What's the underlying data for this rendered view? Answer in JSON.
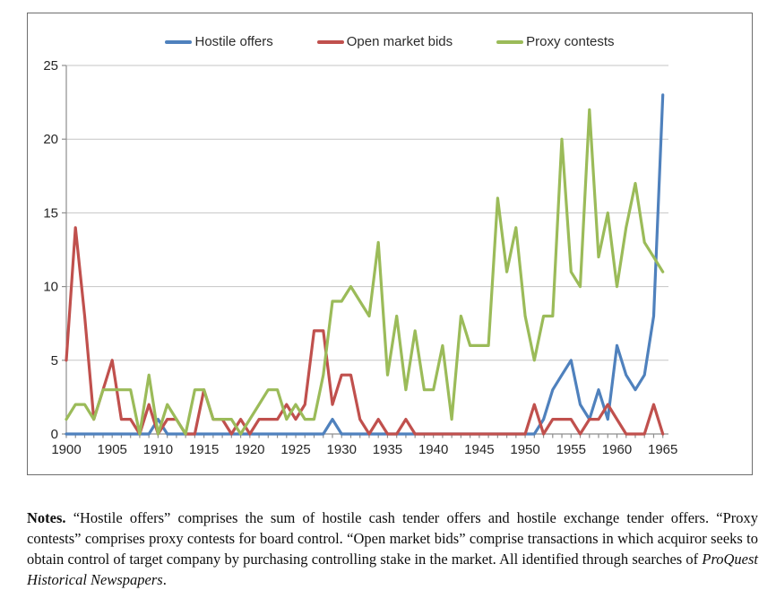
{
  "figure": {
    "border_color": "#6e6e6e",
    "background": "#ffffff"
  },
  "legend": [
    {
      "label": "Hostile offers",
      "color": "#4F81BD"
    },
    {
      "label": "Open market bids",
      "color": "#C0504D"
    },
    {
      "label": "Proxy contests",
      "color": "#9BBB59"
    }
  ],
  "chart_data": {
    "type": "line",
    "title": "",
    "xlabel": "",
    "ylabel": "",
    "x_start": 1900,
    "x_end": 1965,
    "x_step": 1,
    "ylim": [
      0,
      25
    ],
    "y_ticks": [
      0,
      5,
      10,
      15,
      20,
      25
    ],
    "x_tick_labels": [
      1900,
      1905,
      1910,
      1915,
      1920,
      1925,
      1930,
      1935,
      1940,
      1945,
      1950,
      1955,
      1960,
      1965
    ],
    "grid": true,
    "legend_position": "top",
    "gridline_color": "#c6c6c6",
    "axis_color": "#8e8e8e",
    "label_color": "#262626",
    "series": [
      {
        "name": "Hostile offers",
        "color": "#4F81BD",
        "values": [
          0,
          0,
          0,
          0,
          0,
          0,
          0,
          0,
          0,
          0,
          1,
          0,
          0,
          0,
          0,
          0,
          0,
          0,
          0,
          0,
          0,
          0,
          0,
          0,
          0,
          0,
          0,
          0,
          0,
          1,
          0,
          0,
          0,
          0,
          0,
          0,
          0,
          0,
          0,
          0,
          0,
          0,
          0,
          0,
          0,
          0,
          0,
          0,
          0,
          0,
          0,
          0,
          1,
          3,
          4,
          5,
          2,
          1,
          3,
          1,
          6,
          4,
          3,
          4,
          8,
          23
        ]
      },
      {
        "name": "Open market bids",
        "color": "#C0504D",
        "values": [
          5,
          14,
          8,
          1,
          3,
          5,
          1,
          1,
          0,
          2,
          0,
          1,
          1,
          0,
          0,
          3,
          1,
          1,
          0,
          1,
          0,
          1,
          1,
          1,
          2,
          1,
          2,
          7,
          7,
          2,
          4,
          4,
          1,
          0,
          1,
          0,
          0,
          1,
          0,
          0,
          0,
          0,
          0,
          0,
          0,
          0,
          0,
          0,
          0,
          0,
          0,
          2,
          0,
          1,
          1,
          1,
          0,
          1,
          1,
          2,
          1,
          0,
          0,
          0,
          2,
          0
        ]
      },
      {
        "name": "Proxy contests",
        "color": "#9BBB59",
        "values": [
          1,
          2,
          2,
          1,
          3,
          3,
          3,
          3,
          0,
          4,
          0,
          2,
          1,
          0,
          3,
          3,
          1,
          1,
          1,
          0,
          1,
          2,
          3,
          3,
          1,
          2,
          1,
          1,
          4,
          9,
          9,
          10,
          9,
          8,
          13,
          4,
          8,
          3,
          7,
          3,
          3,
          6,
          1,
          8,
          6,
          6,
          6,
          16,
          11,
          14,
          8,
          5,
          8,
          8,
          20,
          11,
          10,
          22,
          12,
          15,
          10,
          14,
          17,
          13,
          12,
          11
        ]
      }
    ]
  },
  "notes": {
    "segments": [
      {
        "t": "Notes.",
        "s": "bold"
      },
      {
        "t": " “Hostile offers” comprises the sum of hostile cash tender offers and hostile exchange tender offers. “Proxy contests” comprises proxy contests for board control. “Open market bids” comprise transactions in which acquiror seeks to obtain control of target company by purchasing controlling stake in the market. All identified through searches of ",
        "s": "normal"
      },
      {
        "t": "ProQuest Historical Newspapers",
        "s": "italic"
      },
      {
        "t": ".",
        "s": "normal"
      }
    ]
  }
}
